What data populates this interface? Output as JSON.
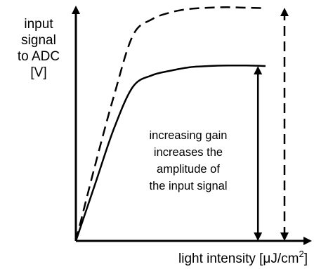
{
  "chart_data": {
    "type": "line",
    "xlabel": "light intensity [μJ/cm",
    "xlabel_superscript": "2",
    "xlabel_close": "]",
    "ylabel_lines": [
      "input",
      "signal",
      "to ADC",
      "[V]"
    ],
    "annotation_lines": [
      "increasing gain",
      "increases the",
      "amplitude of",
      "the input signal"
    ],
    "series": [
      {
        "style": "solid",
        "x": [
          0,
          0.1,
          0.2,
          0.3,
          0.4,
          0.5,
          0.6,
          0.7,
          0.8,
          0.9,
          1.0
        ],
        "y": [
          0,
          0.24,
          0.48,
          0.66,
          0.71,
          0.73,
          0.745,
          0.75,
          0.752,
          0.752,
          0.75
        ]
      },
      {
        "style": "dashed",
        "x": [
          0,
          0.1,
          0.2,
          0.3,
          0.4,
          0.5,
          0.6,
          0.7,
          0.8,
          0.9,
          1.0
        ],
        "y": [
          0,
          0.32,
          0.62,
          0.88,
          0.95,
          0.98,
          0.995,
          1.0,
          1.002,
          1.0,
          0.998
        ]
      }
    ],
    "arrows": [
      {
        "style": "solid",
        "x": 0.96,
        "y_from": 0,
        "y_to": 0.75
      },
      {
        "style": "dashed",
        "x": 1.1,
        "y_from": 0,
        "y_to": 1.0
      }
    ],
    "grid": false,
    "ticks": false
  }
}
